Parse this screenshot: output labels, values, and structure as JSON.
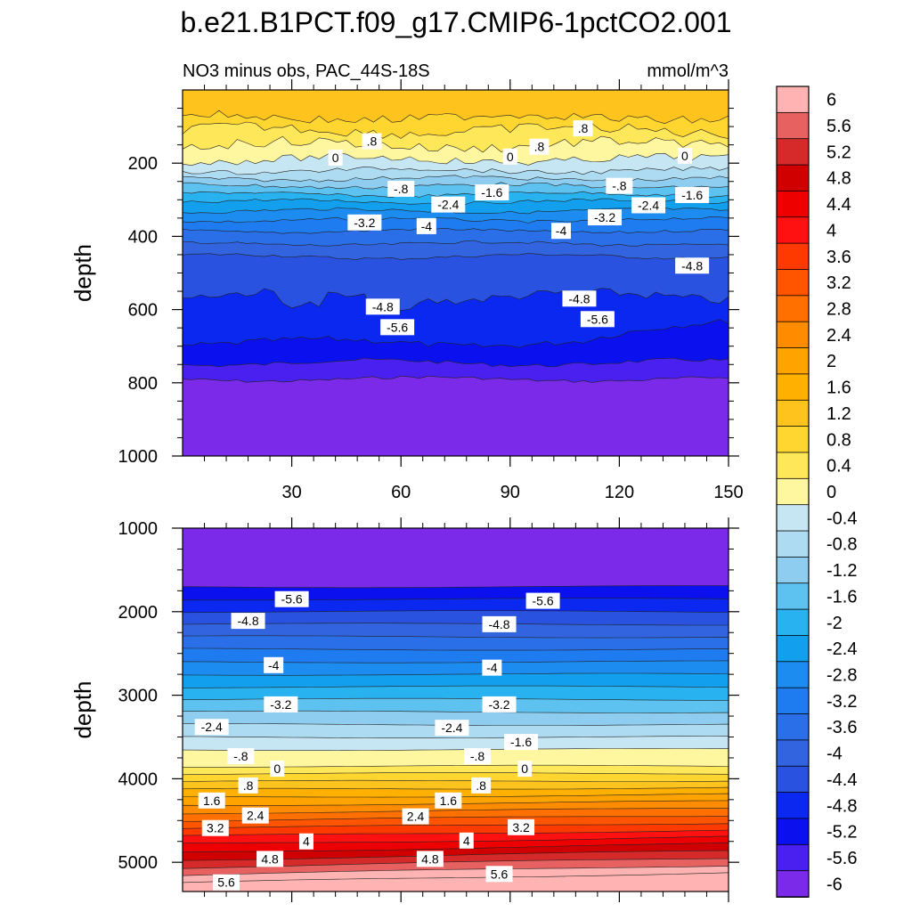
{
  "figure": {
    "title": "b.e21.B1PCT.f09_g17.CMIP6-1pctCO2.001",
    "subtitle_left": "NO3 minus obs, PAC_44S-18S",
    "units": "mmol/m^3"
  },
  "colorbar": {
    "levels": [
      "6",
      "5.6",
      "5.2",
      "4.8",
      "4.4",
      "4",
      "3.6",
      "3.2",
      "2.8",
      "2.4",
      "2",
      "1.6",
      "1.2",
      "0.8",
      "0.4",
      "0",
      "-0.4",
      "-0.8",
      "-1.2",
      "-1.6",
      "-2",
      "-2.4",
      "-2.8",
      "-3.2",
      "-3.6",
      "-4",
      "-4.4",
      "-4.8",
      "-5.2",
      "-5.6",
      "-6"
    ],
    "colors": [
      "#ffb3b3",
      "#e86161",
      "#d62a2a",
      "#d10000",
      "#ee0000",
      "#ff1111",
      "#ff3a00",
      "#ff5500",
      "#ff7000",
      "#ff8c00",
      "#ffa300",
      "#ffb000",
      "#ffc31e",
      "#ffd630",
      "#ffe75a",
      "#fff7a0",
      "#c7e6f3",
      "#addcf2",
      "#8ecdef",
      "#5ec2f0",
      "#28b2f0",
      "#12a0ee",
      "#1c8cf0",
      "#1e7cf0",
      "#2a6fe8",
      "#3264e0",
      "#2a52e0",
      "#0a28f0",
      "#0a10ee",
      "#4a20f0",
      "#7a2ae8"
    ]
  },
  "chart_data": [
    {
      "type": "contour",
      "panel": "upper",
      "xlabel": "",
      "ylabel": "depth",
      "xlim": [
        0,
        150
      ],
      "ylim": [
        1000,
        0
      ],
      "xticks": [
        "30",
        "60",
        "90",
        "120",
        "150"
      ],
      "yticks": [
        "200",
        "400",
        "600",
        "800",
        "1000"
      ],
      "contour_levels": [
        0.8,
        0.4,
        0,
        -0.4,
        -0.8,
        -1.2,
        -1.6,
        -2,
        -2.4,
        -2.8,
        -3.2,
        -3.6,
        -4,
        -4.4,
        -4.8,
        -5.2,
        -5.6
      ],
      "contour_labels": [
        {
          "text": ".8",
          "x": 110,
          "y": 105
        },
        {
          "text": ".8",
          "x": 52,
          "y": 140
        },
        {
          "text": ".8",
          "x": 98,
          "y": 155
        },
        {
          "text": "0",
          "x": 42,
          "y": 185
        },
        {
          "text": "0",
          "x": 90,
          "y": 182
        },
        {
          "text": "0",
          "x": 138,
          "y": 180
        },
        {
          "text": "-.8",
          "x": 60,
          "y": 270
        },
        {
          "text": "-.8",
          "x": 120,
          "y": 262
        },
        {
          "text": "-1.6",
          "x": 85,
          "y": 280
        },
        {
          "text": "-1.6",
          "x": 140,
          "y": 287
        },
        {
          "text": "-2.4",
          "x": 73,
          "y": 313
        },
        {
          "text": "-2.4",
          "x": 128,
          "y": 315
        },
        {
          "text": "-3.2",
          "x": 50,
          "y": 362
        },
        {
          "text": "-3.2",
          "x": 116,
          "y": 348
        },
        {
          "text": "-4",
          "x": 67,
          "y": 372
        },
        {
          "text": "-4",
          "x": 104,
          "y": 385
        },
        {
          "text": "-4.8",
          "x": 55,
          "y": 592
        },
        {
          "text": "-4.8",
          "x": 109,
          "y": 570
        },
        {
          "text": "-4.8",
          "x": 140,
          "y": 480
        },
        {
          "text": "-5.6",
          "x": 59,
          "y": 648
        },
        {
          "text": "-5.6",
          "x": 114,
          "y": 626
        }
      ]
    },
    {
      "type": "contour",
      "panel": "lower",
      "xlabel": "",
      "ylabel": "depth",
      "xlim": [
        0,
        150
      ],
      "ylim": [
        1000,
        5350
      ],
      "yticks": [
        "1000",
        "2000",
        "3000",
        "4000",
        "5000"
      ],
      "contour_levels": [
        -5.6,
        -4.8,
        -4,
        -3.2,
        -2.4,
        -1.6,
        -0.8,
        0,
        0.8,
        1.6,
        2.4,
        3.2,
        4,
        4.8,
        5.6
      ],
      "contour_labels": [
        {
          "text": "-5.6",
          "x": 30,
          "y": 1850
        },
        {
          "text": "-5.6",
          "x": 99,
          "y": 1870
        },
        {
          "text": "-4.8",
          "x": 18,
          "y": 2110
        },
        {
          "text": "-4.8",
          "x": 87,
          "y": 2150
        },
        {
          "text": "-4",
          "x": 25,
          "y": 2640
        },
        {
          "text": "-4",
          "x": 85,
          "y": 2670
        },
        {
          "text": "-3.2",
          "x": 27,
          "y": 3110
        },
        {
          "text": "-3.2",
          "x": 87,
          "y": 3110
        },
        {
          "text": "-2.4",
          "x": 8,
          "y": 3380
        },
        {
          "text": "-2.4",
          "x": 74,
          "y": 3390
        },
        {
          "text": "-1.6",
          "x": 93,
          "y": 3560
        },
        {
          "text": "-.8",
          "x": 16,
          "y": 3730
        },
        {
          "text": "-.8",
          "x": 81,
          "y": 3730
        },
        {
          "text": "0",
          "x": 26,
          "y": 3880
        },
        {
          "text": "0",
          "x": 94,
          "y": 3880
        },
        {
          "text": ".8",
          "x": 18,
          "y": 4080
        },
        {
          "text": ".8",
          "x": 82,
          "y": 4080
        },
        {
          "text": "1.6",
          "x": 8,
          "y": 4260
        },
        {
          "text": "1.6",
          "x": 73,
          "y": 4260
        },
        {
          "text": "2.4",
          "x": 20,
          "y": 4440
        },
        {
          "text": "2.4",
          "x": 64,
          "y": 4450
        },
        {
          "text": "3.2",
          "x": 9,
          "y": 4590
        },
        {
          "text": "3.2",
          "x": 93,
          "y": 4580
        },
        {
          "text": "4",
          "x": 34,
          "y": 4750
        },
        {
          "text": "4",
          "x": 78,
          "y": 4740
        },
        {
          "text": "4.8",
          "x": 24,
          "y": 4960
        },
        {
          "text": "4.8",
          "x": 68,
          "y": 4960
        },
        {
          "text": "5.6",
          "x": 12,
          "y": 5240
        },
        {
          "text": "5.6",
          "x": 87,
          "y": 5140
        }
      ]
    }
  ]
}
